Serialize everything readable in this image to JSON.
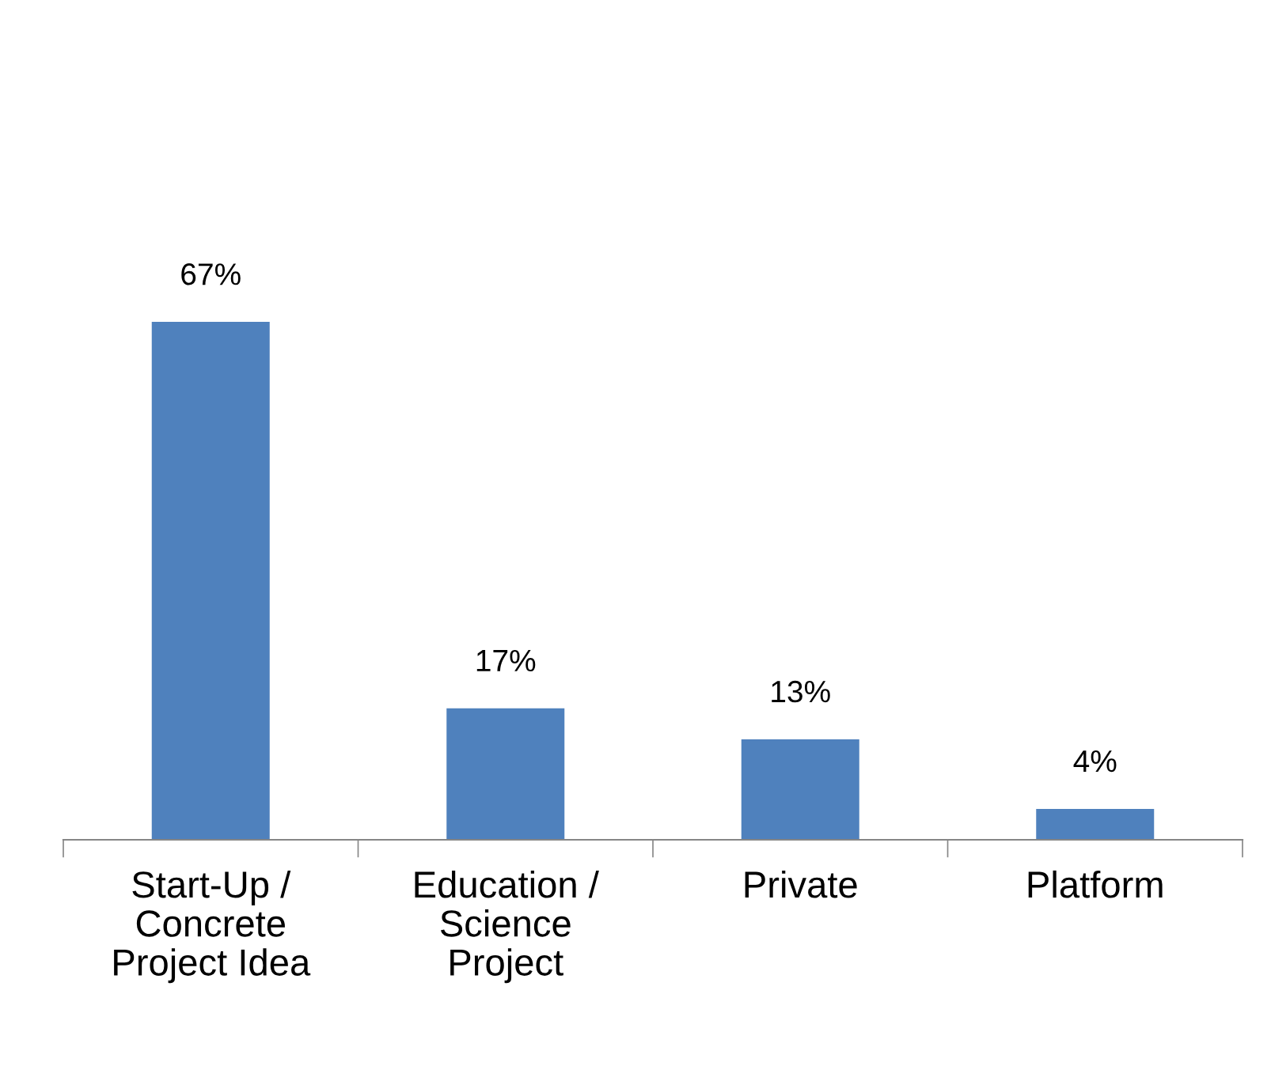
{
  "chart_data": {
    "type": "bar",
    "categories": [
      "Start-Up /\nConcrete\nProject Idea",
      "Education /\nScience\nProject",
      "Private",
      "Platform"
    ],
    "values": [
      67,
      17,
      13,
      4
    ],
    "value_labels": [
      "67%",
      "17%",
      "13%",
      "4%"
    ],
    "color": "#4f81bd",
    "grid": false,
    "legend": false
  }
}
